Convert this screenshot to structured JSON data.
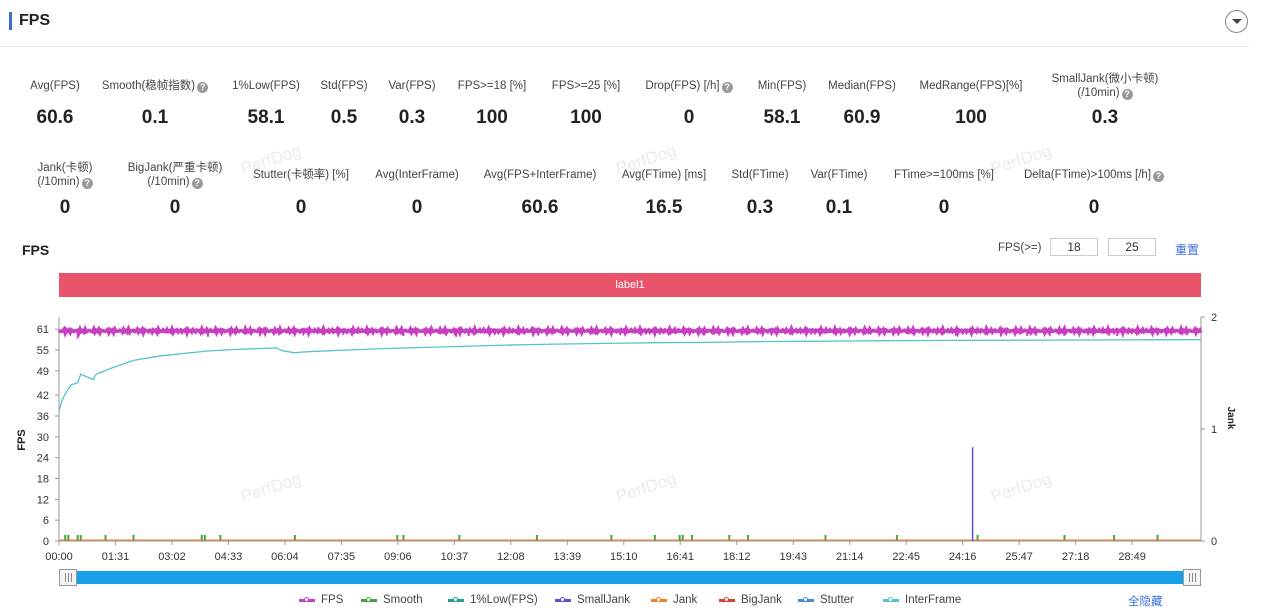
{
  "header": {
    "title": "FPS",
    "collapse_icon": "chevron-down-icon"
  },
  "stats_row1": [
    {
      "label": "Avg(FPS)",
      "value": "60.6",
      "help": false
    },
    {
      "label": "Smooth(稳帧指数)",
      "value": "0.1",
      "help": true
    },
    {
      "label": "1%Low(FPS)",
      "value": "58.1",
      "help": false
    },
    {
      "label": "Std(FPS)",
      "value": "0.5",
      "help": false
    },
    {
      "label": "Var(FPS)",
      "value": "0.3",
      "help": false
    },
    {
      "label": "FPS>=18 [%]",
      "value": "100",
      "help": false
    },
    {
      "label": "FPS>=25 [%]",
      "value": "100",
      "help": false
    },
    {
      "label": "Drop(FPS) [/h]",
      "value": "0",
      "help": true
    },
    {
      "label": "Min(FPS)",
      "value": "58.1",
      "help": false
    },
    {
      "label": "Median(FPS)",
      "value": "60.9",
      "help": false
    },
    {
      "label": "MedRange(FPS)[%]",
      "value": "100",
      "help": false
    },
    {
      "label": "SmallJank(微小卡顿)",
      "label2": "(/10min)",
      "value": "0.3",
      "help": true
    }
  ],
  "stats_row2": [
    {
      "label": "Jank(卡顿)",
      "label2": "(/10min)",
      "value": "0",
      "help": true
    },
    {
      "label": "BigJank(严重卡顿)",
      "label2": "(/10min)",
      "value": "0",
      "help": true
    },
    {
      "label": "Stutter(卡顿率) [%]",
      "value": "0",
      "help": false
    },
    {
      "label": "Avg(InterFrame)",
      "value": "0",
      "help": false
    },
    {
      "label": "Avg(FPS+InterFrame)",
      "value": "60.6",
      "help": false
    },
    {
      "label": "Avg(FTime) [ms]",
      "value": "16.5",
      "help": false
    },
    {
      "label": "Std(FTime)",
      "value": "0.3",
      "help": false
    },
    {
      "label": "Var(FTime)",
      "value": "0.1",
      "help": false
    },
    {
      "label": "FTime>=100ms [%]",
      "value": "0",
      "help": false
    },
    {
      "label": "Delta(FTime)>100ms [/h]",
      "value": "0",
      "help": true
    }
  ],
  "watermark": "PerfDog",
  "chart_section": {
    "title": "FPS",
    "threshold_label": "FPS(>=)",
    "threshold1": "18",
    "threshold2": "25",
    "reset_label": "重置",
    "label_bar": "label1"
  },
  "chart_data": {
    "type": "line",
    "ylabel": "FPS",
    "y2label": "Jank",
    "yticks": [
      "0",
      "6",
      "12",
      "18",
      "24",
      "30",
      "36",
      "42",
      "49",
      "55",
      "61"
    ],
    "y2ticks": [
      "0",
      "1",
      "2"
    ],
    "ylim": [
      0,
      64.5
    ],
    "y2lim": [
      0,
      2
    ],
    "xticks": [
      "00:00",
      "01:31",
      "03:02",
      "04:33",
      "06:04",
      "07:35",
      "09:06",
      "10:37",
      "12:08",
      "13:39",
      "15:10",
      "16:41",
      "18:12",
      "19:43",
      "21:14",
      "22:45",
      "24:16",
      "25:47",
      "27:18",
      "28:49"
    ],
    "xlim_seconds": [
      0,
      1840
    ],
    "series": [
      {
        "name": "FPS",
        "color": "#c83fc2",
        "axis": "left",
        "values": [
          [
            0,
            60.5
          ],
          [
            1840,
            60.5
          ]
        ],
        "dips": [
          [
            30,
            58.3
          ],
          [
            240,
            58.8
          ],
          [
            555,
            59.0
          ],
          [
            640,
            58.8
          ],
          [
            660,
            59.0
          ],
          [
            1040,
            59.2
          ],
          [
            1445,
            59.1
          ],
          [
            1560,
            59.0
          ],
          [
            1620,
            59.1
          ],
          [
            1705,
            59.0
          ]
        ]
      },
      {
        "name": "Smooth",
        "color": "#3fa53f",
        "axis": "left"
      },
      {
        "name": "1%Low(FPS)",
        "color": "#2a9d93",
        "axis": "left"
      },
      {
        "name": "SmallJank",
        "color": "#5a4fcf",
        "axis": "right",
        "spikes": [
          [
            1472,
            0.99
          ]
        ]
      },
      {
        "name": "Jank",
        "color": "#ee8030",
        "axis": "right"
      },
      {
        "name": "BigJank",
        "color": "#d6403a",
        "axis": "right"
      },
      {
        "name": "Stutter",
        "color": "#4a8ad8",
        "axis": "right"
      },
      {
        "name": "InterFrame",
        "color": "#55c4cb",
        "axis": "left",
        "values": [
          [
            0,
            37.5
          ],
          [
            5,
            40.5
          ],
          [
            12,
            43
          ],
          [
            20,
            45
          ],
          [
            30,
            45.5
          ],
          [
            35,
            48
          ],
          [
            55,
            46.5
          ],
          [
            60,
            48
          ],
          [
            80,
            49.5
          ],
          [
            120,
            52
          ],
          [
            160,
            53.2
          ],
          [
            200,
            54
          ],
          [
            240,
            54.7
          ],
          [
            280,
            55.1
          ],
          [
            320,
            55.4
          ],
          [
            350,
            55.6
          ],
          [
            360,
            54.8
          ],
          [
            380,
            54.2
          ],
          [
            400,
            54.5
          ],
          [
            480,
            55.1
          ],
          [
            560,
            55.6
          ],
          [
            640,
            56
          ],
          [
            720,
            56.4
          ],
          [
            800,
            56.7
          ],
          [
            880,
            56.9
          ],
          [
            960,
            57.1
          ],
          [
            1040,
            57.2
          ],
          [
            1120,
            57.4
          ],
          [
            1200,
            57.5
          ],
          [
            1280,
            57.6
          ],
          [
            1360,
            57.7
          ],
          [
            1440,
            57.75
          ],
          [
            1520,
            57.8
          ],
          [
            1600,
            57.85
          ],
          [
            1700,
            57.9
          ],
          [
            1840,
            57.95
          ]
        ]
      }
    ],
    "smooth_spikes_seconds": [
      10,
      15,
      30,
      35,
      75,
      120,
      230,
      235,
      260,
      380,
      545,
      555,
      645,
      770,
      890,
      960,
      1000,
      1005,
      1020,
      1080,
      1110,
      1235,
      1350,
      1480,
      1620,
      1700,
      1770
    ]
  },
  "slider": {
    "left_handle": "slider-left-handle",
    "right_handle": "slider-right-handle"
  },
  "legend": {
    "items": [
      {
        "name": "FPS",
        "color": "#c83fc2"
      },
      {
        "name": "Smooth",
        "color": "#3fa53f"
      },
      {
        "name": "1%Low(FPS)",
        "color": "#2a9d93"
      },
      {
        "name": "SmallJank",
        "color": "#5a4fcf"
      },
      {
        "name": "Jank",
        "color": "#ee8030"
      },
      {
        "name": "BigJank",
        "color": "#d6403a"
      },
      {
        "name": "Stutter",
        "color": "#4a8ad8"
      },
      {
        "name": "InterFrame",
        "color": "#55c4cb"
      }
    ],
    "hide_all": "全隐藏"
  }
}
